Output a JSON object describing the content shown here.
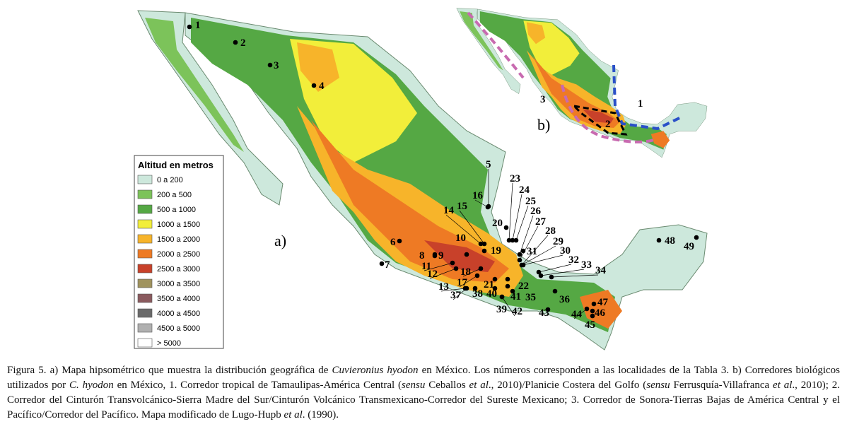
{
  "map": {
    "panel_a_label": "a)",
    "panel_b_label": "b)",
    "corridor_labels": [
      "1",
      "2",
      "3"
    ],
    "legend": {
      "title": "Altitud en metros",
      "items": [
        {
          "label": "0 a 200",
          "color": "#cde8dc"
        },
        {
          "label": "200 a 500",
          "color": "#7cc35a"
        },
        {
          "label": "500 a 1000",
          "color": "#55a844"
        },
        {
          "label": "1000 a 1500",
          "color": "#f2ee3a"
        },
        {
          "label": "1500 a 2000",
          "color": "#f7b42a"
        },
        {
          "label": "2000 a 2500",
          "color": "#ee7a24"
        },
        {
          "label": "2500 a 3000",
          "color": "#c8412a"
        },
        {
          "label": "3000 a 3500",
          "color": "#a0935e"
        },
        {
          "label": "3500 a 4000",
          "color": "#8a5a5e"
        },
        {
          "label": "4000 a 4500",
          "color": "#6a6a6a"
        },
        {
          "label": "4500 a 5000",
          "color": "#b0b0b0"
        },
        {
          "label": "> 5000",
          "color": "#ffffff"
        }
      ]
    },
    "localities": [
      "1",
      "2",
      "3",
      "4",
      "5",
      "6",
      "7",
      "8",
      "9",
      "10",
      "11",
      "12",
      "13",
      "14",
      "15",
      "16",
      "17",
      "18",
      "19",
      "20",
      "21",
      "22",
      "23",
      "24",
      "25",
      "26",
      "27",
      "28",
      "29",
      "30",
      "31",
      "32",
      "33",
      "34",
      "35",
      "36",
      "37",
      "38",
      "39",
      "40",
      "41",
      "42",
      "43",
      "44",
      "45",
      "46",
      "47",
      "48",
      "49"
    ]
  },
  "caption": [
    {
      "text": "Figura 5. a) Mapa hipsométrico que muestra la distribución geográfica de "
    },
    {
      "text": "Cuvieronius hyodon",
      "italic": true
    },
    {
      "text": " en México. Los números corresponden a las localidades de la Tabla 3. b) Corredores biológicos utilizados por "
    },
    {
      "text": "C. hyodon",
      "italic": true
    },
    {
      "text": " en México, 1. Corredor tropical de Tamaulipas-América Central ("
    },
    {
      "text": "sensu",
      "italic": true
    },
    {
      "text": " Ceballos "
    },
    {
      "text": "et al",
      "italic": true
    },
    {
      "text": "., 2010)/Planicie Costera del Golfo ("
    },
    {
      "text": "sensu",
      "italic": true
    },
    {
      "text": " Ferrusquía-Villafranca "
    },
    {
      "text": "et al",
      "italic": true
    },
    {
      "text": "., 2010); 2. Corredor del Cinturón Transvolcánico-Sierra Madre del Sur/Cinturón Volcánico Transmexicano-Corredor del Sureste Mexicano; 3. Corredor de Sonora-Tierras Bajas de América Central y el Pacífico/Corredor del Pacífico. Mapa modificado de Lugo-Hupb "
    },
    {
      "text": "et al",
      "italic": true
    },
    {
      "text": ". (1990)."
    }
  ]
}
